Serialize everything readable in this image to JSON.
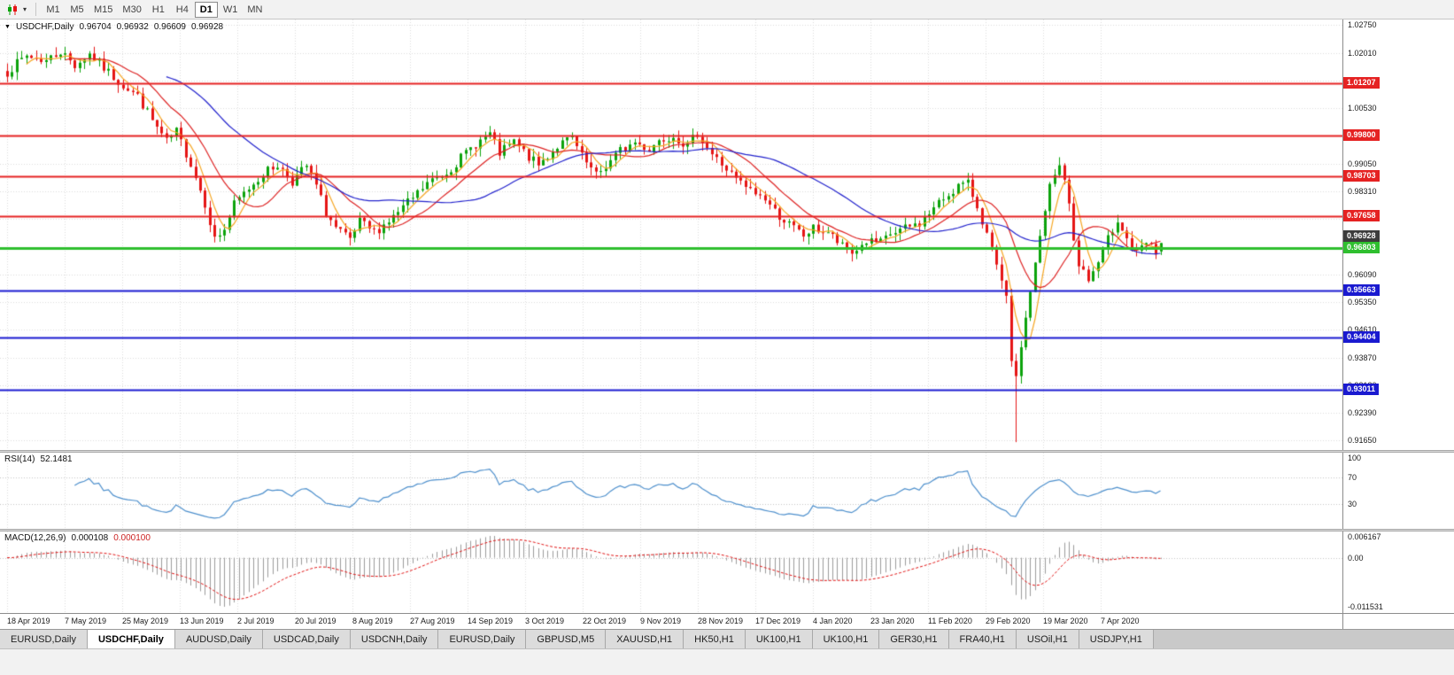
{
  "toolbar": {
    "chart_icon": "candlestick-chart-icon",
    "dropdown_icon": "▾",
    "timeframes": [
      {
        "label": "M1",
        "active": false
      },
      {
        "label": "M5",
        "active": false
      },
      {
        "label": "M15",
        "active": false
      },
      {
        "label": "M30",
        "active": false
      },
      {
        "label": "H1",
        "active": false
      },
      {
        "label": "H4",
        "active": false
      },
      {
        "label": "D1",
        "active": true
      },
      {
        "label": "W1",
        "active": false
      },
      {
        "label": "MN",
        "active": false
      }
    ]
  },
  "chart": {
    "marker_icon": "▼",
    "symbol_label": "USDCHF,Daily",
    "ohlc": {
      "open": "0.96704",
      "high": "0.96932",
      "low": "0.96609",
      "close": "0.96928"
    },
    "price_axis": {
      "min": 0.914,
      "max": 1.029,
      "ticks": [
        "1.02750",
        "1.02010",
        "1.01270",
        "1.00530",
        "0.99790",
        "0.99050",
        "0.98310",
        "0.97570",
        "0.96830",
        "0.96090",
        "0.95350",
        "0.94610",
        "0.93870",
        "0.93130",
        "0.92390",
        "0.91650"
      ]
    },
    "levels": [
      {
        "price": 1.01207,
        "label": "1.01207",
        "color": "#e52222",
        "kind": "resistance"
      },
      {
        "price": 0.998,
        "label": "0.99800",
        "color": "#e52222",
        "kind": "resistance"
      },
      {
        "price": 0.98703,
        "label": "0.98703",
        "color": "#e52222",
        "kind": "resistance"
      },
      {
        "price": 0.97658,
        "label": "0.97658",
        "color": "#e52222",
        "kind": "resistance"
      },
      {
        "price": 0.96803,
        "label": "0.96803",
        "color": "#2fbf2f",
        "kind": "current-level"
      },
      {
        "price": 0.95663,
        "label": "0.95663",
        "color": "#1a1ad0",
        "kind": "support"
      },
      {
        "price": 0.94404,
        "label": "0.94404",
        "color": "#1a1ad0",
        "kind": "support"
      },
      {
        "price": 0.93011,
        "label": "0.93011",
        "color": "#1a1ad0",
        "kind": "support"
      }
    ],
    "bid_tag": {
      "price": 0.96928,
      "label": "0.96928",
      "color": "#3c3c3c"
    }
  },
  "rsi": {
    "name": "RSI(14)",
    "value": "52.1481",
    "line_color": "#4d8fcc",
    "levels": [
      70,
      30
    ],
    "axis": [
      "100",
      "70",
      "30"
    ]
  },
  "macd": {
    "name": "MACD(12,26,9)",
    "main_value": "0.000108",
    "signal_value": "0.000100",
    "histogram_color": "#9b9b9b",
    "signal_color": "#e01010",
    "axis": [
      "0.006167",
      "0.00",
      "-0.011531"
    ]
  },
  "time_axis": {
    "dates": [
      "18 Apr 2019",
      "7 May 2019",
      "25 May 2019",
      "13 Jun 2019",
      "2 Jul 2019",
      "20 Jul 2019",
      "8 Aug 2019",
      "27 Aug 2019",
      "14 Sep 2019",
      "3 Oct 2019",
      "22 Oct 2019",
      "9 Nov 2019",
      "28 Nov 2019",
      "17 Dec 2019",
      "4 Jan 2020",
      "23 Jan 2020",
      "11 Feb 2020",
      "29 Feb 2020",
      "19 Mar 2020",
      "7 Apr 2020"
    ]
  },
  "tabs": [
    {
      "label": "EURUSD,Daily",
      "active": false
    },
    {
      "label": "USDCHF,Daily",
      "active": true
    },
    {
      "label": "AUDUSD,Daily",
      "active": false
    },
    {
      "label": "USDCAD,Daily",
      "active": false
    },
    {
      "label": "USDCNH,Daily",
      "active": false
    },
    {
      "label": "EURUSD,Daily",
      "active": false
    },
    {
      "label": "GBPUSD,M5",
      "active": false
    },
    {
      "label": "XAUUSD,H1",
      "active": false
    },
    {
      "label": "HK50,H1",
      "active": false
    },
    {
      "label": "UK100,H1",
      "active": false
    },
    {
      "label": "UK100,H1",
      "active": false
    },
    {
      "label": "GER30,H1",
      "active": false
    },
    {
      "label": "FRA40,H1",
      "active": false
    },
    {
      "label": "USOil,H1",
      "active": false
    },
    {
      "label": "USDJPY,H1",
      "active": false
    }
  ],
  "chart_data": {
    "type": "candlestick",
    "symbol": "USDCHF",
    "timeframe": "Daily",
    "title": "USDCHF,Daily",
    "y_range": {
      "min": 0.914,
      "max": 1.029
    },
    "x_range": {
      "start": "18 Apr 2019",
      "end": "Apr 2020"
    },
    "last_ohlc": {
      "open": 0.96704,
      "high": 0.96932,
      "low": 0.96609,
      "close": 0.96928
    },
    "candles_count": 240,
    "up_color": "#0ba30b",
    "down_color": "#e51515",
    "close_path_anchors": [
      [
        0,
        1.015
      ],
      [
        4,
        1.0193
      ],
      [
        8,
        1.018
      ],
      [
        11,
        1.0205
      ],
      [
        14,
        1.0168
      ],
      [
        17,
        1.0198
      ],
      [
        20,
        1.016
      ],
      [
        23,
        1.0125
      ],
      [
        27,
        1.0085
      ],
      [
        30,
        1.002
      ],
      [
        33,
        0.9962
      ],
      [
        35,
        0.999
      ],
      [
        38,
        0.9905
      ],
      [
        41,
        0.98
      ],
      [
        43,
        0.9703
      ],
      [
        45,
        0.973
      ],
      [
        47,
        0.9795
      ],
      [
        50,
        0.984
      ],
      [
        53,
        0.9878
      ],
      [
        56,
        0.9902
      ],
      [
        59,
        0.9858
      ],
      [
        62,
        0.9898
      ],
      [
        64,
        0.9845
      ],
      [
        66,
        0.9775
      ],
      [
        68,
        0.9732
      ],
      [
        71,
        0.9698
      ],
      [
        73,
        0.9748
      ],
      [
        76,
        0.9722
      ],
      [
        80,
        0.9762
      ],
      [
        84,
        0.9812
      ],
      [
        87,
        0.9852
      ],
      [
        91,
        0.9882
      ],
      [
        94,
        0.992
      ],
      [
        97,
        0.9958
      ],
      [
        100,
        0.9983
      ],
      [
        102,
        0.9932
      ],
      [
        105,
        0.9962
      ],
      [
        108,
        0.9922
      ],
      [
        110,
        0.99
      ],
      [
        114,
        0.9952
      ],
      [
        117,
        0.9973
      ],
      [
        119,
        0.9922
      ],
      [
        122,
        0.9872
      ],
      [
        125,
        0.9912
      ],
      [
        127,
        0.994
      ],
      [
        130,
        0.9962
      ],
      [
        133,
        0.9944
      ],
      [
        135,
        0.9968
      ],
      [
        138,
        0.9982
      ],
      [
        141,
        0.995
      ],
      [
        143,
        0.9988
      ],
      [
        146,
        0.993
      ],
      [
        149,
        0.989
      ],
      [
        151,
        0.9862
      ],
      [
        154,
        0.9832
      ],
      [
        157,
        0.9812
      ],
      [
        159,
        0.9778
      ],
      [
        162,
        0.9742
      ],
      [
        165,
        0.9712
      ],
      [
        167,
        0.9731
      ],
      [
        170,
        0.9722
      ],
      [
        173,
        0.9682
      ],
      [
        175,
        0.9666
      ],
      [
        178,
        0.9697
      ],
      [
        181,
        0.9692
      ],
      [
        183,
        0.9716
      ],
      [
        186,
        0.9731
      ],
      [
        189,
        0.9746
      ],
      [
        191,
        0.9772
      ],
      [
        194,
        0.9812
      ],
      [
        197,
        0.9846
      ],
      [
        199,
        0.985
      ],
      [
        201,
        0.9792
      ],
      [
        203,
        0.9715
      ],
      [
        205,
        0.9628
      ],
      [
        207,
        0.954
      ],
      [
        208,
        0.9385
      ],
      [
        209,
        0.9325
      ],
      [
        210,
        0.942
      ],
      [
        212,
        0.9565
      ],
      [
        214,
        0.9705
      ],
      [
        216,
        0.9845
      ],
      [
        218,
        0.9898
      ],
      [
        219,
        0.9868
      ],
      [
        220,
        0.979
      ],
      [
        221,
        0.97
      ],
      [
        222,
        0.964
      ],
      [
        224,
        0.9592
      ],
      [
        226,
        0.964
      ],
      [
        228,
        0.9702
      ],
      [
        230,
        0.9758
      ],
      [
        232,
        0.9705
      ],
      [
        234,
        0.9662
      ],
      [
        236,
        0.9692
      ],
      [
        238,
        0.9668
      ],
      [
        239,
        0.96928
      ]
    ],
    "spike_low": {
      "index": 209,
      "price": 0.9161
    },
    "moving_averages": [
      {
        "type": "SMA",
        "period": 5,
        "color": "#f5a623"
      },
      {
        "type": "SMA",
        "period": 13,
        "color": "#dd2222"
      },
      {
        "type": "SMA",
        "period": 34,
        "color": "#2222cc"
      }
    ],
    "key_levels": {
      "resistance": [
        1.01207,
        0.998,
        0.98703,
        0.97658
      ],
      "current": 0.96803,
      "support": [
        0.95663,
        0.94404,
        0.93011
      ]
    },
    "indicators": [
      {
        "name": "RSI",
        "period": 14,
        "last_value": 52.1481,
        "scale": [
          0,
          100
        ],
        "guides": [
          70,
          30
        ]
      },
      {
        "name": "MACD",
        "fast": 12,
        "slow": 26,
        "signal": 9,
        "last_values": [
          0.000108,
          0.0001
        ],
        "axis_extents": [
          0.006167,
          -0.011531
        ]
      }
    ]
  }
}
